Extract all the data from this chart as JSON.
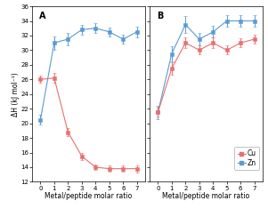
{
  "panel_A": {
    "x": [
      0,
      1,
      2,
      3,
      4,
      5,
      6,
      7
    ],
    "cu_y": [
      26.0,
      26.2,
      18.8,
      15.5,
      14.0,
      13.8,
      13.8,
      13.8
    ],
    "cu_err": [
      0.5,
      0.7,
      0.6,
      0.5,
      0.4,
      0.4,
      0.4,
      0.5
    ],
    "zn_y": [
      20.5,
      31.0,
      31.5,
      32.8,
      33.0,
      32.5,
      31.5,
      32.5
    ],
    "zn_err": [
      0.7,
      0.9,
      0.8,
      0.7,
      0.7,
      0.6,
      0.6,
      0.7
    ]
  },
  "panel_B": {
    "x": [
      0,
      1,
      2,
      3,
      4,
      5,
      6,
      7
    ],
    "cu_y": [
      21.5,
      27.5,
      31.0,
      30.0,
      31.0,
      30.0,
      31.0,
      31.5
    ],
    "cu_err": [
      0.6,
      0.8,
      0.7,
      0.6,
      0.7,
      0.6,
      0.6,
      0.6
    ],
    "zn_y": [
      21.5,
      29.5,
      33.5,
      31.5,
      32.5,
      34.0,
      34.0,
      34.0
    ],
    "zn_err": [
      0.9,
      1.0,
      1.2,
      0.9,
      0.8,
      0.8,
      0.8,
      0.8
    ]
  },
  "ylim": [
    12,
    36
  ],
  "yticks": [
    12,
    14,
    16,
    18,
    20,
    22,
    24,
    26,
    28,
    30,
    32,
    34,
    36
  ],
  "xlabel": "Metal/peptide molar ratio",
  "ylabel": "ΔH (kJ mol⁻¹)",
  "cu_color": "#e87070",
  "zn_color": "#5b9bd5",
  "bg_color": "#ffffff",
  "legend_cu": "Cu",
  "legend_zn": "Zn",
  "label_A": "A",
  "label_B": "B",
  "title_fontsize": 7,
  "axis_fontsize": 5.5,
  "tick_fontsize": 5,
  "legend_fontsize": 5.5
}
